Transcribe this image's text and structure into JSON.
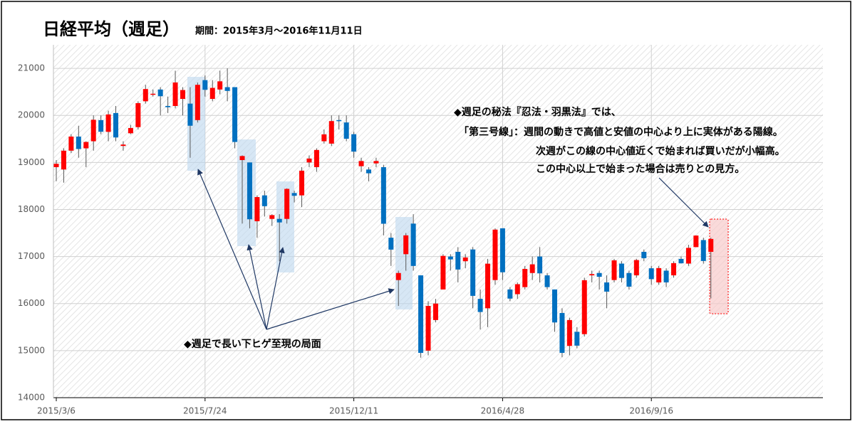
{
  "chart_data": {
    "type": "candlestick",
    "title": "日経平均（週足）",
    "subtitle": "期間：2015年3月～2016年11月11日",
    "annotations": [
      "◆週足で長い下ヒゲ至現の局面",
      "◆週足の秘法『忍法・羽黒法』では、",
      "「第三号線」：週間の動きで高値と安値の中心より上に実体がある陽線。",
      "次週がこの線の中心値近くで始まれば買いだが小幅高。",
      "この中心以上で始まった場合は売りとの見方。"
    ],
    "up_color": "#ff0000",
    "down_color": "#0070c0",
    "grid": true,
    "ylim": [
      14000,
      21500
    ],
    "yticks": [
      14000,
      15000,
      16000,
      17000,
      18000,
      19000,
      20000,
      21000
    ],
    "categories": [
      "2015/3/6",
      null,
      null,
      null,
      null,
      null,
      null,
      null,
      null,
      null,
      null,
      null,
      null,
      null,
      null,
      null,
      null,
      null,
      null,
      null,
      "2015/7/24",
      null,
      null,
      null,
      null,
      null,
      null,
      null,
      null,
      null,
      null,
      null,
      null,
      null,
      null,
      null,
      null,
      null,
      null,
      null,
      "2015/12/11",
      null,
      null,
      null,
      null,
      null,
      null,
      null,
      null,
      null,
      null,
      null,
      null,
      null,
      null,
      null,
      null,
      null,
      null,
      null,
      "2016/4/28",
      null,
      null,
      null,
      null,
      null,
      null,
      null,
      null,
      null,
      null,
      null,
      null,
      null,
      null,
      null,
      null,
      null,
      null,
      null,
      "2016/9/16",
      null,
      null,
      null,
      null,
      null,
      null,
      null,
      null
    ],
    "open": [
      18900,
      18850,
      19250,
      19550,
      19300,
      19450,
      19900,
      19650,
      20050,
      19350,
      19620,
      19750,
      20300,
      20450,
      20550,
      20200,
      20200,
      20350,
      20250,
      19900,
      20750,
      20350,
      20550,
      20600,
      20600,
      19050,
      19000,
      17750,
      18300,
      17800,
      17800,
      17800,
      18350,
      18300,
      19000,
      18900,
      19450,
      19400,
      19900,
      19850,
      19600,
      18920,
      18850,
      18980,
      18900,
      17400,
      16500,
      17050,
      17700,
      16600,
      15000,
      15650,
      16300,
      17000,
      17100,
      16900,
      17150,
      16100,
      15900,
      16500,
      17600,
      16300,
      16200,
      16350,
      16650,
      17000,
      16600,
      16300,
      15800,
      15100,
      15400,
      15350,
      16600,
      16650,
      16450,
      16500,
      16850,
      16650,
      16600,
      17100,
      16750,
      16450,
      16700,
      16600,
      16950,
      16850,
      17200,
      17350,
      17100
    ],
    "high": [
      19050,
      19300,
      19600,
      19780,
      19450,
      20000,
      20000,
      20100,
      20200,
      19450,
      19800,
      20300,
      20650,
      20550,
      20600,
      20400,
      20950,
      20600,
      20600,
      20700,
      20850,
      20750,
      20950,
      21000,
      20600,
      19150,
      19000,
      18300,
      18400,
      17900,
      17900,
      18450,
      18400,
      18900,
      19150,
      19300,
      19700,
      20000,
      20000,
      20000,
      19650,
      19100,
      18900,
      19100,
      18950,
      17500,
      16700,
      17500,
      17900,
      16600,
      16050,
      16100,
      17050,
      17050,
      17200,
      17050,
      17200,
      16300,
      16950,
      17600,
      17600,
      16350,
      16450,
      16800,
      17000,
      17200,
      16650,
      16300,
      15900,
      15700,
      15500,
      16550,
      16700,
      16700,
      16600,
      16950,
      16900,
      16700,
      16950,
      17150,
      16800,
      16800,
      16750,
      16900,
      17000,
      17250,
      17450,
      17400,
      17400
    ],
    "low": [
      18600,
      18570,
      19200,
      19100,
      18900,
      19250,
      19600,
      19450,
      19450,
      19250,
      19600,
      19700,
      20250,
      20400,
      20000,
      20050,
      20150,
      20000,
      19100,
      19850,
      20400,
      20300,
      20450,
      20300,
      19300,
      17700,
      17600,
      17400,
      17850,
      17650,
      16900,
      17700,
      18150,
      18050,
      18900,
      18800,
      19400,
      19350,
      19700,
      19450,
      19100,
      18800,
      18600,
      18900,
      17450,
      16800,
      15950,
      16700,
      16700,
      14850,
      14900,
      15600,
      16300,
      16700,
      16450,
      16750,
      15900,
      15450,
      15500,
      16400,
      16500,
      16050,
      16100,
      16300,
      16500,
      16450,
      16300,
      15400,
      14860,
      14900,
      15050,
      15300,
      16450,
      16300,
      15900,
      16450,
      16450,
      16300,
      16550,
      16900,
      16400,
      16400,
      16350,
      16550,
      16850,
      16800,
      17200,
      16850,
      16111
    ],
    "close": [
      18971,
      19250,
      19550,
      19286,
      19435,
      19907,
      19652,
      20020,
      19531,
      19380,
      19732,
      20260,
      20560,
      20460,
      20407,
      20174,
      20700,
      20539,
      19780,
      20650,
      20544,
      20585,
      20724,
      20520,
      19435,
      19136,
      17792,
      18264,
      18070,
      17880,
      17725,
      18438,
      18291,
      18825,
      19083,
      19265,
      19597,
      19879,
      19883,
      19504,
      19230,
      19030,
      18769,
      19030,
      17697,
      17147,
      16650,
      17450,
      16800,
      14952,
      15950,
      16000,
      17014,
      16939,
      16724,
      16980,
      16164,
      15821,
      16848,
      17572,
      16666,
      16106,
      16412,
      16736,
      16834,
      16642,
      16350,
      15599,
      14952,
      15650,
      15106,
      16497,
      16627,
      16569,
      16254,
      16919,
      16545,
      16360,
      16925,
      16965,
      16519,
      16754,
      16450,
      16860,
      16856,
      17184,
      17446,
      16905,
      17374
    ]
  }
}
